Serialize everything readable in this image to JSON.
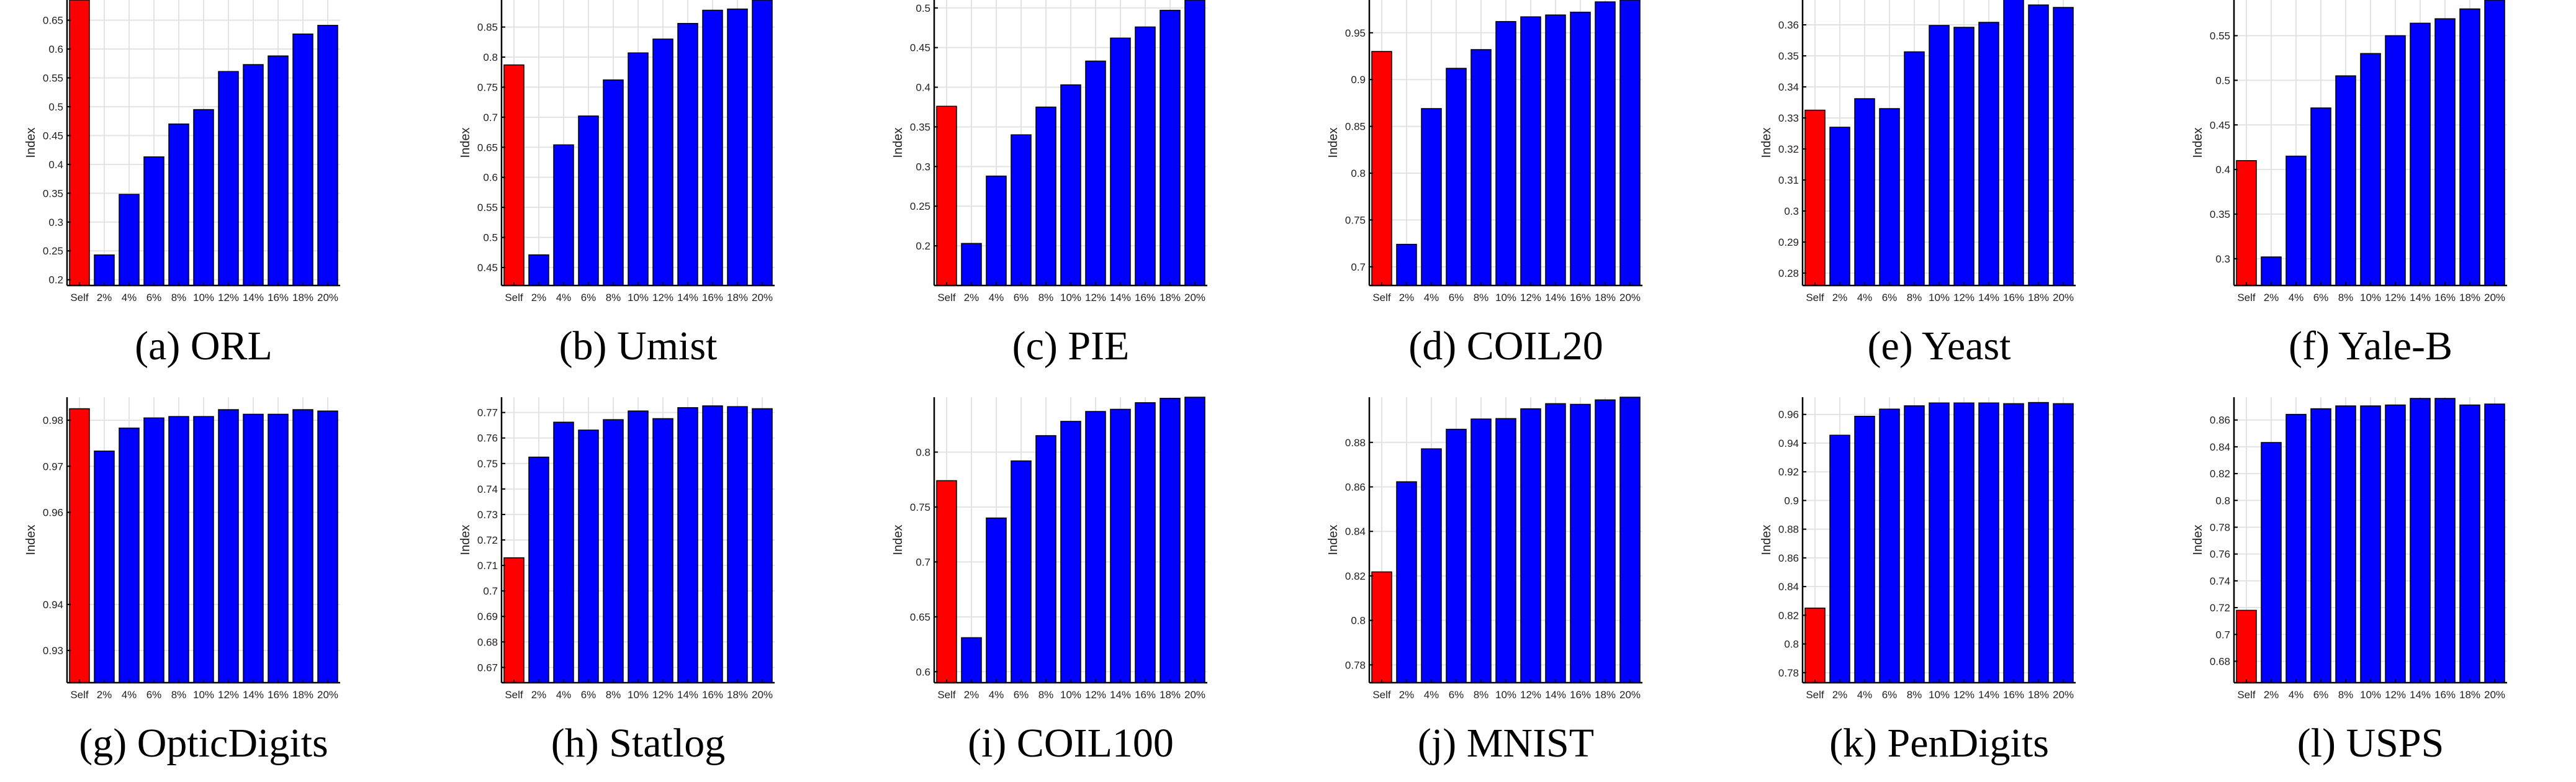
{
  "colors": {
    "self_bar": "#ff0000",
    "ratio_bar": "#0000ff",
    "grid": "#e3e3e3",
    "axis": "#000000"
  },
  "chart_data": [
    {
      "type": "bar",
      "caption": "(a) ORL",
      "ylabel": "Index",
      "categories": [
        "Self",
        "2%",
        "4%",
        "6%",
        "8%",
        "10%",
        "12%",
        "14%",
        "16%",
        "18%",
        "20%"
      ],
      "values": [
        0.685,
        0.243,
        0.348,
        0.413,
        0.47,
        0.495,
        0.561,
        0.573,
        0.588,
        0.626,
        0.641
      ],
      "ylim": [
        0.19,
        0.685
      ],
      "yticks": [
        0.2,
        0.25,
        0.3,
        0.35,
        0.4,
        0.45,
        0.5,
        0.55,
        0.6,
        0.65
      ],
      "ytick_labels": [
        "0.2",
        "0.25",
        "0.3",
        "0.35",
        "0.4",
        "0.45",
        "0.5",
        "0.55",
        "0.6",
        "0.65"
      ],
      "grid": true
    },
    {
      "type": "bar",
      "caption": "(b) Umist",
      "ylabel": "Index",
      "categories": [
        "Self",
        "2%",
        "4%",
        "6%",
        "8%",
        "10%",
        "12%",
        "14%",
        "16%",
        "18%",
        "20%"
      ],
      "values": [
        0.787,
        0.471,
        0.654,
        0.702,
        0.762,
        0.807,
        0.83,
        0.856,
        0.878,
        0.88,
        0.895
      ],
      "ylim": [
        0.42,
        0.895
      ],
      "yticks": [
        0.45,
        0.5,
        0.55,
        0.6,
        0.65,
        0.7,
        0.75,
        0.8,
        0.85
      ],
      "ytick_labels": [
        "0.45",
        "0.5",
        "0.55",
        "0.6",
        "0.65",
        "0.7",
        "0.75",
        "0.8",
        "0.85"
      ],
      "grid": true
    },
    {
      "type": "bar",
      "caption": "(c) PIE",
      "ylabel": "Index",
      "categories": [
        "Self",
        "2%",
        "4%",
        "6%",
        "8%",
        "10%",
        "12%",
        "14%",
        "16%",
        "18%",
        "20%"
      ],
      "values": [
        0.376,
        0.203,
        0.288,
        0.34,
        0.375,
        0.403,
        0.433,
        0.462,
        0.476,
        0.497,
        0.51
      ],
      "ylim": [
        0.15,
        0.51
      ],
      "yticks": [
        0.2,
        0.25,
        0.3,
        0.35,
        0.4,
        0.45,
        0.5
      ],
      "ytick_labels": [
        "0.2",
        "0.25",
        "0.3",
        "0.35",
        "0.4",
        "0.45",
        "0.5"
      ],
      "grid": true
    },
    {
      "type": "bar",
      "caption": "(d) COIL20",
      "ylabel": "Index",
      "categories": [
        "Self",
        "2%",
        "4%",
        "6%",
        "8%",
        "10%",
        "12%",
        "14%",
        "16%",
        "18%",
        "20%"
      ],
      "values": [
        0.93,
        0.724,
        0.869,
        0.912,
        0.932,
        0.962,
        0.967,
        0.969,
        0.972,
        0.983,
        0.985
      ],
      "ylim": [
        0.68,
        0.985
      ],
      "yticks": [
        0.7,
        0.75,
        0.8,
        0.85,
        0.9,
        0.95
      ],
      "ytick_labels": [
        "0.7",
        "0.75",
        "0.8",
        "0.85",
        "0.9",
        "0.95"
      ],
      "grid": true
    },
    {
      "type": "bar",
      "caption": "(e) Yeast",
      "ylabel": "Index",
      "categories": [
        "Self",
        "2%",
        "4%",
        "6%",
        "8%",
        "10%",
        "12%",
        "14%",
        "16%",
        "18%",
        "20%"
      ],
      "values": [
        0.3325,
        0.327,
        0.3362,
        0.333,
        0.3513,
        0.3598,
        0.3592,
        0.3608,
        0.3683,
        0.3664,
        0.3656
      ],
      "ylim": [
        0.276,
        0.368
      ],
      "yticks": [
        0.28,
        0.29,
        0.3,
        0.31,
        0.32,
        0.33,
        0.34,
        0.35,
        0.36
      ],
      "ytick_labels": [
        "0.28",
        "0.29",
        "0.3",
        "0.31",
        "0.32",
        "0.33",
        "0.34",
        "0.35",
        "0.36"
      ],
      "grid": true
    },
    {
      "type": "bar",
      "caption": "(f) Yale-B",
      "ylabel": "Index",
      "categories": [
        "Self",
        "2%",
        "4%",
        "6%",
        "8%",
        "10%",
        "12%",
        "14%",
        "16%",
        "18%",
        "20%"
      ],
      "values": [
        0.41,
        0.302,
        0.415,
        0.469,
        0.505,
        0.53,
        0.55,
        0.564,
        0.569,
        0.58,
        0.59
      ],
      "ylim": [
        0.27,
        0.59
      ],
      "yticks": [
        0.3,
        0.35,
        0.4,
        0.45,
        0.5,
        0.55
      ],
      "ytick_labels": [
        "0.3",
        "0.35",
        "0.4",
        "0.45",
        "0.5",
        "0.55"
      ],
      "grid": true
    },
    {
      "type": "bar",
      "caption": "(g) OpticDigits",
      "ylabel": "Index",
      "categories": [
        "Self",
        "2%",
        "4%",
        "6%",
        "8%",
        "10%",
        "12%",
        "14%",
        "16%",
        "18%",
        "20%"
      ],
      "values": [
        0.9825,
        0.9733,
        0.9783,
        0.9805,
        0.9808,
        0.9808,
        0.9823,
        0.9813,
        0.9813,
        0.9823,
        0.982
      ],
      "ylim": [
        0.923,
        0.985
      ],
      "yticks": [
        0.93,
        0.94,
        0.95,
        0.96,
        0.97,
        0.98
      ],
      "ytick_labels": [
        "0.93",
        "0.94",
        "0.96",
        "0.97",
        "0.98"
      ],
      "ytick_values": [
        0.93,
        0.94,
        0.96,
        0.97,
        0.98
      ],
      "grid": true
    },
    {
      "type": "bar",
      "caption": "(h) Statlog",
      "ylabel": "Index",
      "categories": [
        "Self",
        "2%",
        "4%",
        "6%",
        "8%",
        "10%",
        "12%",
        "14%",
        "16%",
        "18%",
        "20%"
      ],
      "values": [
        0.713,
        0.7525,
        0.7662,
        0.7631,
        0.7672,
        0.7706,
        0.7676,
        0.7719,
        0.7726,
        0.7723,
        0.7715
      ],
      "ylim": [
        0.664,
        0.776
      ],
      "yticks": [
        0.67,
        0.68,
        0.69,
        0.7,
        0.71,
        0.72,
        0.73,
        0.74,
        0.75,
        0.76,
        0.77
      ],
      "ytick_labels": [
        "0.67",
        "0.68",
        "0.69",
        "0.7",
        "0.71",
        "0.72",
        "0.73",
        "0.74",
        "0.75",
        "0.76",
        "0.77"
      ],
      "grid": true
    },
    {
      "type": "bar",
      "caption": "(i) COIL100",
      "ylabel": "Index",
      "categories": [
        "Self",
        "2%",
        "4%",
        "6%",
        "8%",
        "10%",
        "12%",
        "14%",
        "16%",
        "18%",
        "20%"
      ],
      "values": [
        0.774,
        0.631,
        0.74,
        0.792,
        0.815,
        0.828,
        0.837,
        0.839,
        0.845,
        0.849,
        0.85
      ],
      "ylim": [
        0.59,
        0.85
      ],
      "yticks": [
        0.6,
        0.65,
        0.7,
        0.75,
        0.8
      ],
      "ytick_labels": [
        "0.6",
        "0.65",
        "0.7",
        "0.75",
        "0.8"
      ],
      "grid": true
    },
    {
      "type": "bar",
      "caption": "(j) MNIST",
      "ylabel": "Index",
      "categories": [
        "Self",
        "2%",
        "4%",
        "6%",
        "8%",
        "10%",
        "12%",
        "14%",
        "16%",
        "18%",
        "20%"
      ],
      "values": [
        0.8218,
        0.8623,
        0.8771,
        0.8859,
        0.8905,
        0.8907,
        0.8951,
        0.8974,
        0.8971,
        0.8991,
        0.9003
      ],
      "ylim": [
        0.772,
        0.9003
      ],
      "yticks": [
        0.78,
        0.8,
        0.82,
        0.84,
        0.86,
        0.88
      ],
      "ytick_labels": [
        "0.78",
        "0.8",
        "0.82",
        "0.84",
        "0.86",
        "0.88"
      ],
      "grid": true
    },
    {
      "type": "bar",
      "caption": "(k) PenDigits",
      "ylabel": "Index",
      "categories": [
        "Self",
        "2%",
        "4%",
        "6%",
        "8%",
        "10%",
        "12%",
        "14%",
        "16%",
        "18%",
        "20%"
      ],
      "values": [
        0.825,
        0.9455,
        0.9587,
        0.9637,
        0.966,
        0.968,
        0.968,
        0.968,
        0.9675,
        0.9683,
        0.9675
      ],
      "ylim": [
        0.773,
        0.972
      ],
      "yticks": [
        0.78,
        0.8,
        0.82,
        0.84,
        0.86,
        0.88,
        0.9,
        0.92,
        0.94,
        0.96
      ],
      "ytick_labels": [
        "0.78",
        "0.8",
        "0.82",
        "0.84",
        "0.86",
        "0.88",
        "0.9",
        "0.92",
        "0.94",
        "0.96"
      ],
      "grid": true
    },
    {
      "type": "bar",
      "caption": "(l) USPS",
      "ylabel": "Index",
      "categories": [
        "Self",
        "2%",
        "4%",
        "6%",
        "8%",
        "10%",
        "12%",
        "14%",
        "16%",
        "18%",
        "20%"
      ],
      "values": [
        0.718,
        0.8432,
        0.8642,
        0.8684,
        0.8705,
        0.8705,
        0.8712,
        0.8761,
        0.8761,
        0.8712,
        0.8719
      ],
      "ylim": [
        0.664,
        0.877
      ],
      "yticks": [
        0.68,
        0.7,
        0.72,
        0.74,
        0.76,
        0.78,
        0.8,
        0.82,
        0.84,
        0.86
      ],
      "ytick_labels": [
        "0.68",
        "0.7",
        "0.72",
        "0.74",
        "0.76",
        "0.78",
        "0.8",
        "0.82",
        "0.84",
        "0.86"
      ],
      "grid": true
    }
  ]
}
